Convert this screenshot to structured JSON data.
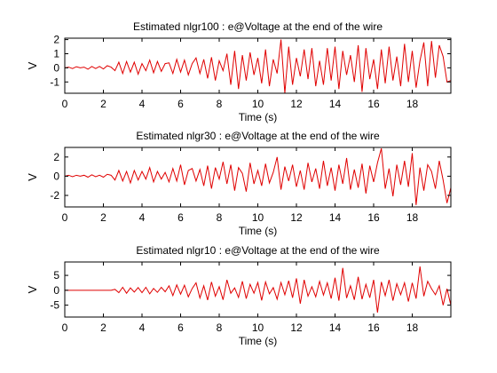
{
  "colors": {
    "line": "#e00000",
    "axes": "#000000",
    "background": "#ffffff"
  },
  "chart_data": [
    {
      "type": "line",
      "title": "Estimated nlgr100 : e@Voltage at the end of the wire",
      "xlabel": "Time (s)",
      "ylabel": "V",
      "xlim": [
        0,
        20
      ],
      "ylim": [
        -1.8,
        2.1
      ],
      "xticks": [
        0,
        2,
        4,
        6,
        8,
        10,
        12,
        14,
        16,
        18
      ],
      "xtick_labels": [
        "0",
        "2",
        "4",
        "6",
        "8",
        "10",
        "12",
        "14",
        "16",
        "18"
      ],
      "yticks": [
        2,
        1,
        0,
        -1
      ],
      "ytick_labels": [
        "2",
        "1",
        "0",
        "-1"
      ],
      "grid": false,
      "series": [
        {
          "x": [
            0.0,
            0.2,
            0.4,
            0.6,
            0.8,
            1.0,
            1.2,
            1.4,
            1.6,
            1.8,
            2.0,
            2.2,
            2.4,
            2.6,
            2.8,
            3.0,
            3.2,
            3.4,
            3.6,
            3.8,
            4.0,
            4.2,
            4.4,
            4.6,
            4.8,
            5.0,
            5.2,
            5.4,
            5.6,
            5.8,
            6.0,
            6.2,
            6.4,
            6.6,
            6.8,
            7.0,
            7.2,
            7.4,
            7.6,
            7.8,
            8.0,
            8.2,
            8.4,
            8.6,
            8.8,
            9.0,
            9.2,
            9.4,
            9.6,
            9.8,
            10.0,
            10.2,
            10.4,
            10.6,
            10.8,
            11.0,
            11.2,
            11.4,
            11.6,
            11.8,
            12.0,
            12.2,
            12.4,
            12.6,
            12.8,
            13.0,
            13.2,
            13.4,
            13.6,
            13.8,
            14.0,
            14.2,
            14.4,
            14.6,
            14.8,
            15.0,
            15.2,
            15.4,
            15.6,
            15.8,
            16.0,
            16.2,
            16.4,
            16.6,
            16.8,
            17.0,
            17.2,
            17.4,
            17.6,
            17.8,
            18.0,
            18.2,
            18.4,
            18.6,
            18.8,
            19.0,
            19.2,
            19.4,
            19.6,
            19.8,
            20.0
          ],
          "y": [
            0.0,
            0.05,
            -0.05,
            0.08,
            0.0,
            0.05,
            -0.1,
            0.1,
            -0.05,
            0.1,
            -0.08,
            0.15,
            0.05,
            -0.2,
            0.4,
            -0.4,
            0.45,
            -0.3,
            0.4,
            -0.45,
            0.3,
            -0.2,
            0.55,
            -0.35,
            0.45,
            -0.25,
            0.3,
            0.35,
            -0.4,
            0.6,
            -0.3,
            0.55,
            -0.5,
            0.3,
            0.7,
            -0.4,
            0.6,
            -0.75,
            0.75,
            -0.9,
            0.5,
            -0.2,
            1.0,
            -1.2,
            1.2,
            -1.5,
            0.9,
            -0.9,
            1.1,
            -0.5,
            0.7,
            -1.1,
            1.3,
            -1.3,
            0.6,
            -0.4,
            2.0,
            -1.8,
            1.5,
            -1.2,
            0.7,
            -0.6,
            1.3,
            -0.8,
            1.4,
            -1.3,
            0.5,
            -1.2,
            1.4,
            -0.9,
            1.5,
            -1.5,
            1.2,
            -0.5,
            0.9,
            -1.0,
            1.6,
            -1.7,
            1.4,
            -0.8,
            0.6,
            -1.5,
            1.3,
            -1.1,
            1.5,
            -0.9,
            0.8,
            -1.3,
            1.7,
            -1.0,
            1.2,
            -1.4,
            0.5,
            1.8,
            -1.3,
            1.9,
            -0.7,
            1.6,
            0.8,
            -1.0,
            -0.9
          ]
        }
      ]
    },
    {
      "type": "line",
      "title": "Estimated nlgr30 : e@Voltage at the end of the wire",
      "xlabel": "Time (s)",
      "ylabel": "V",
      "xlim": [
        0,
        20
      ],
      "ylim": [
        -3.2,
        3.0
      ],
      "xticks": [
        0,
        2,
        4,
        6,
        8,
        10,
        12,
        14,
        16,
        18
      ],
      "xtick_labels": [
        "0",
        "2",
        "4",
        "6",
        "8",
        "10",
        "12",
        "14",
        "16",
        "18"
      ],
      "yticks": [
        2,
        0,
        -2
      ],
      "ytick_labels": [
        "2",
        "0",
        "-2"
      ],
      "grid": false,
      "series": [
        {
          "x": [
            0.0,
            0.2,
            0.4,
            0.6,
            0.8,
            1.0,
            1.2,
            1.4,
            1.6,
            1.8,
            2.0,
            2.2,
            2.4,
            2.6,
            2.8,
            3.0,
            3.2,
            3.4,
            3.6,
            3.8,
            4.0,
            4.2,
            4.4,
            4.6,
            4.8,
            5.0,
            5.2,
            5.4,
            5.6,
            5.8,
            6.0,
            6.2,
            6.4,
            6.6,
            6.8,
            7.0,
            7.2,
            7.4,
            7.6,
            7.8,
            8.0,
            8.2,
            8.4,
            8.6,
            8.8,
            9.0,
            9.2,
            9.4,
            9.6,
            9.8,
            10.0,
            10.2,
            10.4,
            10.6,
            10.8,
            11.0,
            11.2,
            11.4,
            11.6,
            11.8,
            12.0,
            12.2,
            12.4,
            12.6,
            12.8,
            13.0,
            13.2,
            13.4,
            13.6,
            13.8,
            14.0,
            14.2,
            14.4,
            14.6,
            14.8,
            15.0,
            15.2,
            15.4,
            15.6,
            15.8,
            16.0,
            16.2,
            16.4,
            16.6,
            16.8,
            17.0,
            17.2,
            17.4,
            17.6,
            17.8,
            18.0,
            18.2,
            18.4,
            18.6,
            18.8,
            19.0,
            19.2,
            19.4,
            19.6,
            19.8,
            20.0
          ],
          "y": [
            0.0,
            0.1,
            -0.05,
            0.1,
            0.0,
            0.1,
            -0.1,
            0.15,
            -0.05,
            0.1,
            -0.1,
            0.2,
            0.1,
            -0.4,
            0.6,
            -0.5,
            0.5,
            -0.7,
            0.6,
            -0.4,
            0.5,
            -0.3,
            0.9,
            -0.6,
            0.5,
            -0.3,
            0.4,
            -0.6,
            0.8,
            -0.5,
            1.2,
            -0.9,
            0.6,
            0.8,
            -0.5,
            0.7,
            -1.0,
            1.1,
            -1.3,
            0.9,
            -0.3,
            1.5,
            -0.8,
            1.2,
            -1.5,
            0.9,
            0.3,
            -1.6,
            1.4,
            -0.8,
            0.6,
            -1.0,
            1.3,
            -0.7,
            0.4,
            2.0,
            -1.4,
            1.0,
            -0.5,
            1.2,
            -1.1,
            0.6,
            -1.4,
            1.4,
            -0.6,
            0.8,
            -1.3,
            1.6,
            -1.0,
            0.9,
            -1.5,
            1.2,
            -0.8,
            1.9,
            -1.4,
            0.7,
            -1.2,
            1.3,
            -1.8,
            1.1,
            -0.6,
            1.4,
            2.9,
            -1.3,
            0.8,
            -2.1,
            1.2,
            -0.9,
            1.6,
            -1.1,
            2.4,
            -3.0,
            0.9,
            -1.5,
            1.2,
            0.5,
            -1.3,
            1.6,
            -0.4,
            -2.8,
            -1.2
          ]
        }
      ]
    },
    {
      "type": "line",
      "title": "Estimated nlgr10 : e@Voltage at the end of the wire",
      "xlabel": "Time (s)",
      "ylabel": "V",
      "xlim": [
        0,
        20
      ],
      "ylim": [
        -9.0,
        9.5
      ],
      "xticks": [
        0,
        2,
        4,
        6,
        8,
        10,
        12,
        14,
        16,
        18
      ],
      "xtick_labels": [
        "0",
        "2",
        "4",
        "6",
        "8",
        "10",
        "12",
        "14",
        "16",
        "18"
      ],
      "yticks": [
        5,
        0,
        -5
      ],
      "ytick_labels": [
        "5",
        "0",
        "-5"
      ],
      "grid": false,
      "series": [
        {
          "x": [
            0.0,
            0.2,
            0.4,
            0.6,
            0.8,
            1.0,
            1.2,
            1.4,
            1.6,
            1.8,
            2.0,
            2.2,
            2.4,
            2.6,
            2.8,
            3.0,
            3.2,
            3.4,
            3.6,
            3.8,
            4.0,
            4.2,
            4.4,
            4.6,
            4.8,
            5.0,
            5.2,
            5.4,
            5.6,
            5.8,
            6.0,
            6.2,
            6.4,
            6.6,
            6.8,
            7.0,
            7.2,
            7.4,
            7.6,
            7.8,
            8.0,
            8.2,
            8.4,
            8.6,
            8.8,
            9.0,
            9.2,
            9.4,
            9.6,
            9.8,
            10.0,
            10.2,
            10.4,
            10.6,
            10.8,
            11.0,
            11.2,
            11.4,
            11.6,
            11.8,
            12.0,
            12.2,
            12.4,
            12.6,
            12.8,
            13.0,
            13.2,
            13.4,
            13.6,
            13.8,
            14.0,
            14.2,
            14.4,
            14.6,
            14.8,
            15.0,
            15.2,
            15.4,
            15.6,
            15.8,
            16.0,
            16.2,
            16.4,
            16.6,
            16.8,
            17.0,
            17.2,
            17.4,
            17.6,
            17.8,
            18.0,
            18.2,
            18.4,
            18.6,
            18.8,
            19.0,
            19.2,
            19.4,
            19.6,
            19.8,
            20.0
          ],
          "y": [
            0.0,
            0.0,
            0.0,
            0.0,
            0.0,
            0.0,
            0.0,
            0.0,
            0.0,
            0.0,
            0.0,
            0.0,
            0.0,
            0.3,
            -0.8,
            1.0,
            -1.0,
            0.8,
            -0.6,
            0.9,
            -0.8,
            1.0,
            -1.2,
            0.6,
            -0.7,
            1.0,
            -0.5,
            1.5,
            -1.8,
            1.8,
            -1.3,
            1.7,
            -2.2,
            0.6,
            2.5,
            -2.6,
            1.5,
            -3.3,
            2.8,
            -2.0,
            1.2,
            -3.2,
            3.5,
            -1.0,
            0.8,
            -2.4,
            3.0,
            -2.8,
            2.0,
            -1.0,
            2.6,
            -3.4,
            2.8,
            -1.2,
            0.9,
            -3.0,
            2.6,
            -1.5,
            3.2,
            -2.5,
            4.0,
            -4.5,
            3.5,
            -2.0,
            1.2,
            -2.2,
            3.0,
            -1.6,
            2.5,
            -2.8,
            4.2,
            -3.5,
            7.5,
            -2.6,
            1.5,
            -3.2,
            4.5,
            -3.0,
            2.0,
            -2.5,
            3.5,
            -7.5,
            2.8,
            -1.8,
            3.5,
            -3.5,
            2.2,
            -1.5,
            2.5,
            -3.8,
            2.5,
            -2.8,
            8.0,
            -2.0,
            3.0,
            0.5,
            -1.5,
            1.5,
            -5.0,
            0.5,
            -5.0
          ]
        }
      ]
    }
  ]
}
